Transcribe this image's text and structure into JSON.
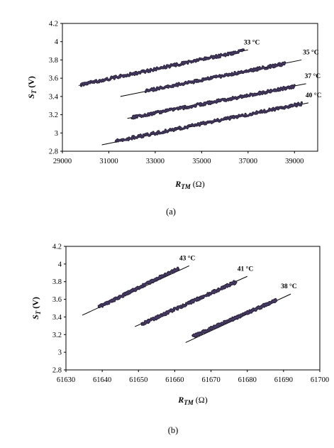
{
  "chart_data": [
    {
      "type": "scatter",
      "caption": "(a)",
      "xlabel_main": "R",
      "xlabel_sub": "TM",
      "xlabel_unit": "(Ω)",
      "ylabel_main": "S",
      "ylabel_sub": "T",
      "ylabel_unit": "(V)",
      "xlim": [
        29000,
        40000
      ],
      "ylim": [
        2.8,
        4.2
      ],
      "xticks": [
        29000,
        31000,
        33000,
        35000,
        37000,
        39000
      ],
      "yticks": [
        2.8,
        3,
        3.2,
        3.4,
        3.6,
        3.8,
        4,
        4.2
      ],
      "xtick_labels": [
        "29000",
        "31000",
        "33000",
        "35000",
        "37000",
        "39000"
      ],
      "ytick_labels": [
        "2.8",
        "3",
        "3.2",
        "3.4",
        "3.6",
        "3.8",
        "4",
        "4.2"
      ],
      "series": [
        {
          "name": "33 °C",
          "data_x": [
            29800,
            36800
          ],
          "data_y": [
            3.53,
            3.9
          ],
          "fit_x": [
            29700,
            37000
          ],
          "fit_y": [
            3.52,
            3.91
          ]
        },
        {
          "name": "35 °C",
          "data_x": [
            32600,
            38600
          ],
          "data_y": [
            3.46,
            3.76
          ],
          "fit_x": [
            31500,
            39300
          ],
          "fit_y": [
            3.4,
            3.8
          ]
        },
        {
          "name": "37 °C",
          "data_x": [
            32000,
            39000
          ],
          "data_y": [
            3.17,
            3.51
          ],
          "fit_x": [
            31800,
            39500
          ],
          "fit_y": [
            3.16,
            3.54
          ]
        },
        {
          "name": "40 °C",
          "data_x": [
            31300,
            39300
          ],
          "data_y": [
            2.91,
            3.32
          ],
          "fit_x": [
            30700,
            39600
          ],
          "fit_y": [
            2.87,
            3.33
          ]
        }
      ]
    },
    {
      "type": "scatter",
      "caption": "(b)",
      "xlabel_main": "R",
      "xlabel_sub": "TM",
      "xlabel_unit": "(Ω)",
      "ylabel_main": "S",
      "ylabel_sub": "T",
      "ylabel_unit": "(V)",
      "xlim": [
        61630,
        61700
      ],
      "ylim": [
        2.8,
        4.2
      ],
      "xticks": [
        61630,
        61640,
        61650,
        61660,
        61670,
        61680,
        61690,
        61700
      ],
      "yticks": [
        2.8,
        3,
        3.2,
        3.4,
        3.6,
        3.8,
        4,
        4.2
      ],
      "xtick_labels": [
        "61630",
        "61640",
        "61650",
        "61660",
        "61670",
        "61680",
        "61690",
        "61700"
      ],
      "ytick_labels": [
        "2.8",
        "3",
        "3.2",
        "3.4",
        "3.6",
        "3.8",
        "4",
        "4.2"
      ],
      "series": [
        {
          "name": "43 °C",
          "data_x": [
            61639,
            61661
          ],
          "data_y": [
            3.51,
            3.95
          ],
          "fit_x": [
            61634.5,
            61664
          ],
          "fit_y": [
            3.42,
            3.98
          ]
        },
        {
          "name": "41 °C",
          "data_x": [
            61651,
            61677
          ],
          "data_y": [
            3.32,
            3.8
          ],
          "fit_x": [
            61649,
            61680
          ],
          "fit_y": [
            3.29,
            3.86
          ]
        },
        {
          "name": "38 °C",
          "data_x": [
            61665,
            61688
          ],
          "data_y": [
            3.18,
            3.59
          ],
          "fit_x": [
            61663,
            61692
          ],
          "fit_y": [
            3.11,
            3.66
          ]
        }
      ]
    }
  ]
}
